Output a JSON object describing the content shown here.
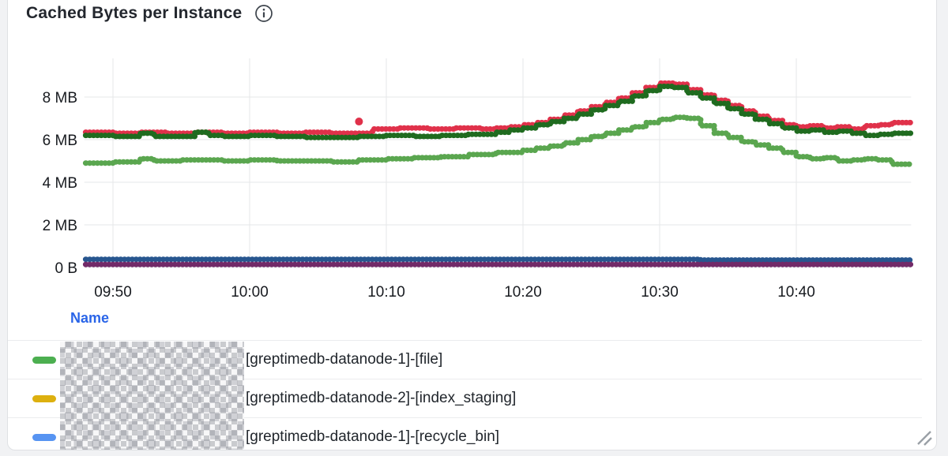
{
  "panel": {
    "title": "Cached Bytes per Instance",
    "info_icon": "info-circle"
  },
  "legend": {
    "header": "Name",
    "rows": [
      {
        "marker_color": "#4caf50",
        "redacted_prefix": true,
        "label": "[greptimedb-datanode-1]-[file]"
      },
      {
        "marker_color": "#ddb00f",
        "redacted_prefix": true,
        "label": "[greptimedb-datanode-2]-[index_staging]"
      },
      {
        "marker_color": "#5794f2",
        "redacted_prefix": true,
        "label": "[greptimedb-datanode-1]-[recycle_bin]"
      }
    ]
  },
  "chart_data": {
    "type": "line",
    "title": "Cached Bytes per Instance",
    "draw_style": "dense-points-step",
    "grid": true,
    "legend_position": "bottom-table",
    "xlabel": "",
    "ylabel": "",
    "x_unit": "minutes-since-09:00",
    "x_range": [
      47.9,
      108.4
    ],
    "x_ticks": [
      {
        "minute": 50,
        "label": "09:50"
      },
      {
        "minute": 60,
        "label": "10:00"
      },
      {
        "minute": 70,
        "label": "10:10"
      },
      {
        "minute": 80,
        "label": "10:20"
      },
      {
        "minute": 90,
        "label": "10:30"
      },
      {
        "minute": 100,
        "label": "10:40"
      }
    ],
    "y_unit": "MB",
    "ylim": [
      0,
      9.8
    ],
    "y_ticks": [
      {
        "mb": 0,
        "label": "0 B"
      },
      {
        "mb": 2,
        "label": "2 MB"
      },
      {
        "mb": 4,
        "label": "4 MB"
      },
      {
        "mb": 6,
        "label": "6 MB"
      },
      {
        "mb": 8,
        "label": "8 MB"
      }
    ],
    "series": [
      {
        "name": "light-green",
        "color": "#5aa64f",
        "points": [
          [
            48,
            4.9
          ],
          [
            50,
            4.95
          ],
          [
            52,
            5.1
          ],
          [
            53,
            5.0
          ],
          [
            55,
            5.05
          ],
          [
            58,
            5.0
          ],
          [
            60,
            5.05
          ],
          [
            62,
            5.0
          ],
          [
            64,
            5.0
          ],
          [
            66,
            4.95
          ],
          [
            68,
            5.05
          ],
          [
            70,
            5.1
          ],
          [
            72,
            5.15
          ],
          [
            74,
            5.2
          ],
          [
            76,
            5.3
          ],
          [
            78,
            5.4
          ],
          [
            80,
            5.5
          ],
          [
            81,
            5.6
          ],
          [
            82,
            5.7
          ],
          [
            83,
            5.85
          ],
          [
            84,
            6.0
          ],
          [
            85,
            6.15
          ],
          [
            86,
            6.3
          ],
          [
            87,
            6.45
          ],
          [
            88,
            6.6
          ],
          [
            89,
            6.8
          ],
          [
            90,
            6.95
          ],
          [
            91,
            7.05
          ],
          [
            92,
            7.0
          ],
          [
            93,
            6.65
          ],
          [
            94,
            6.3
          ],
          [
            95,
            6.1
          ],
          [
            96,
            5.9
          ],
          [
            97,
            5.75
          ],
          [
            98,
            5.6
          ],
          [
            99,
            5.4
          ],
          [
            100,
            5.2
          ],
          [
            101,
            5.1
          ],
          [
            102,
            5.15
          ],
          [
            103,
            5.0
          ],
          [
            104,
            5.05
          ],
          [
            105,
            5.1
          ],
          [
            106,
            5.05
          ],
          [
            107,
            4.85
          ],
          [
            108.4,
            4.8
          ]
        ]
      },
      {
        "name": "red",
        "color": "#e0314a",
        "points": [
          [
            48,
            6.35
          ],
          [
            50,
            6.3
          ],
          [
            52,
            6.35
          ],
          [
            54,
            6.3
          ],
          [
            56,
            6.35
          ],
          [
            58,
            6.3
          ],
          [
            60,
            6.35
          ],
          [
            62,
            6.3
          ],
          [
            64,
            6.35
          ],
          [
            66,
            6.3
          ],
          [
            68,
            6.3
          ],
          [
            69,
            6.5
          ],
          [
            71,
            6.55
          ],
          [
            73,
            6.5
          ],
          [
            75,
            6.55
          ],
          [
            77,
            6.5
          ],
          [
            78,
            6.55
          ],
          [
            79,
            6.6
          ],
          [
            80,
            6.7
          ],
          [
            81,
            6.8
          ],
          [
            82,
            6.95
          ],
          [
            83,
            7.15
          ],
          [
            84,
            7.35
          ],
          [
            85,
            7.55
          ],
          [
            86,
            7.75
          ],
          [
            87,
            7.95
          ],
          [
            88,
            8.2
          ],
          [
            89,
            8.45
          ],
          [
            90,
            8.65
          ],
          [
            91,
            8.6
          ],
          [
            92,
            8.35
          ],
          [
            93,
            8.1
          ],
          [
            94,
            7.85
          ],
          [
            95,
            7.6
          ],
          [
            96,
            7.35
          ],
          [
            97,
            7.1
          ],
          [
            98,
            6.9
          ],
          [
            99,
            6.7
          ],
          [
            100,
            6.6
          ],
          [
            101,
            6.65
          ],
          [
            102,
            6.55
          ],
          [
            103,
            6.6
          ],
          [
            104,
            6.5
          ],
          [
            105,
            6.65
          ],
          [
            106,
            6.7
          ],
          [
            107,
            6.8
          ],
          [
            108.4,
            6.8
          ]
        ]
      },
      {
        "name": "dark-green",
        "color": "#1f6b1f",
        "points": [
          [
            48,
            6.2
          ],
          [
            50,
            6.15
          ],
          [
            52,
            6.3
          ],
          [
            53,
            6.15
          ],
          [
            56,
            6.35
          ],
          [
            57,
            6.2
          ],
          [
            58,
            6.15
          ],
          [
            60,
            6.2
          ],
          [
            62,
            6.15
          ],
          [
            64,
            6.1
          ],
          [
            66,
            6.1
          ],
          [
            68,
            6.15
          ],
          [
            70,
            6.2
          ],
          [
            72,
            6.15
          ],
          [
            74,
            6.2
          ],
          [
            76,
            6.25
          ],
          [
            78,
            6.35
          ],
          [
            79,
            6.45
          ],
          [
            80,
            6.55
          ],
          [
            81,
            6.7
          ],
          [
            82,
            6.85
          ],
          [
            83,
            7.0
          ],
          [
            84,
            7.2
          ],
          [
            85,
            7.4
          ],
          [
            86,
            7.6
          ],
          [
            87,
            7.8
          ],
          [
            88,
            8.05
          ],
          [
            89,
            8.3
          ],
          [
            90,
            8.5
          ],
          [
            91,
            8.45
          ],
          [
            92,
            8.2
          ],
          [
            93,
            7.95
          ],
          [
            94,
            7.7
          ],
          [
            95,
            7.45
          ],
          [
            96,
            7.2
          ],
          [
            97,
            6.95
          ],
          [
            98,
            6.75
          ],
          [
            99,
            6.55
          ],
          [
            100,
            6.4
          ],
          [
            101,
            6.45
          ],
          [
            102,
            6.35
          ],
          [
            103,
            6.4
          ],
          [
            104,
            6.3
          ],
          [
            105,
            6.2
          ],
          [
            106,
            6.25
          ],
          [
            107,
            6.3
          ],
          [
            108.4,
            6.3
          ]
        ]
      },
      {
        "name": "navy-blue-flat",
        "color": "#27568f",
        "points": [
          [
            48,
            0.38
          ],
          [
            92,
            0.38
          ],
          [
            93,
            0.35
          ],
          [
            108.4,
            0.35
          ]
        ]
      },
      {
        "name": "purple-flat",
        "color": "#722a68",
        "points": [
          [
            48,
            0.14
          ],
          [
            108.4,
            0.14
          ]
        ]
      }
    ],
    "outliers": [
      {
        "series": "red",
        "minute": 68,
        "mb": 6.85,
        "color": "#e0314a"
      }
    ]
  }
}
